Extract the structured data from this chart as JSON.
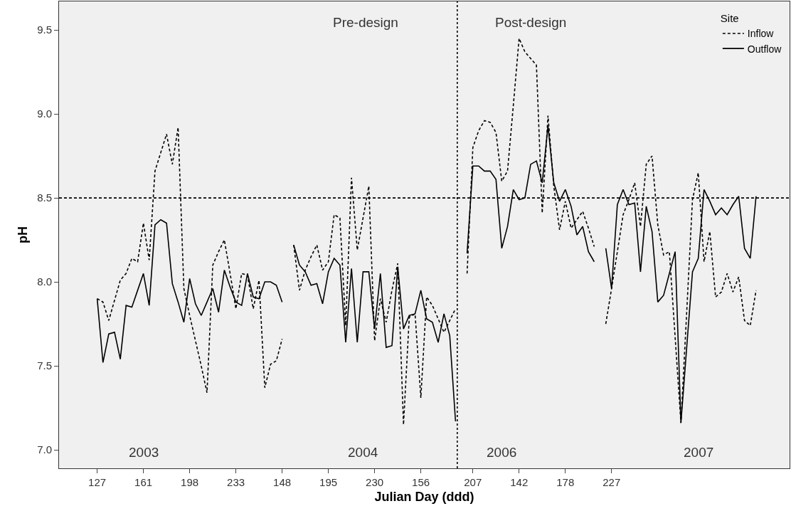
{
  "chart_data": {
    "type": "line",
    "xlabel": "Julian Day (ddd)",
    "ylabel": "pH",
    "legend_title": "Site",
    "legend": "top right",
    "grid": false,
    "marker": "none",
    "categories": [
      "127",
      null,
      null,
      null,
      null,
      null,
      null,
      null,
      "161",
      null,
      null,
      null,
      null,
      null,
      null,
      null,
      "198",
      null,
      null,
      null,
      null,
      null,
      null,
      null,
      "233",
      null,
      null,
      null,
      null,
      null,
      null,
      null,
      "148",
      null,
      null,
      null,
      null,
      null,
      null,
      null,
      "195",
      null,
      null,
      null,
      null,
      null,
      null,
      null,
      "230",
      null,
      null,
      null,
      null,
      null,
      null,
      null,
      "156",
      null,
      null,
      null,
      null,
      null,
      null,
      null,
      null,
      "207",
      null,
      null,
      null,
      null,
      null,
      null,
      null,
      "142",
      null,
      null,
      null,
      null,
      null,
      null,
      null,
      "178",
      null,
      null,
      null,
      null,
      null,
      null,
      null,
      "227",
      null,
      null,
      null,
      null,
      null,
      null,
      null,
      null,
      null,
      null,
      null,
      null,
      null,
      null,
      null,
      null,
      null,
      null,
      null,
      null,
      null,
      null,
      null,
      null,
      null
    ],
    "ylim": [
      6.89,
      9.67
    ],
    "yticks": [
      {
        "value": 7,
        "label": "7.0"
      },
      {
        "value": 7.5,
        "label": "7.5"
      },
      {
        "value": 8,
        "label": "8.0"
      },
      {
        "value": 8.5,
        "label": "8.5"
      },
      {
        "value": 9,
        "label": "9.0"
      },
      {
        "value": 9.5,
        "label": "9.5"
      }
    ],
    "ref_lines": [
      {
        "axis": "y",
        "value": 8.5,
        "line_style": "dashed",
        "color": "#000000"
      }
    ],
    "annotations": [
      "Pre-design",
      "Post-design",
      "2003",
      "2004",
      "2006",
      "2007"
    ],
    "series": [
      {
        "name": "Inflow",
        "color": "#000000",
        "line_style": "dashed",
        "values": [
          7.9,
          7.88,
          7.77,
          7.89,
          8.01,
          8.05,
          8.14,
          8.12,
          8.35,
          8.13,
          8.66,
          8.77,
          8.88,
          8.7,
          8.92,
          7.96,
          7.8,
          7.65,
          7.5,
          7.34,
          8.1,
          8.18,
          8.25,
          8.05,
          7.84,
          8.05,
          8.04,
          7.84,
          8.01,
          7.37,
          7.51,
          7.53,
          7.66,
          null,
          8.22,
          7.95,
          8.07,
          8.15,
          8.22,
          8.07,
          8.12,
          8.4,
          8.38,
          7.74,
          8.62,
          8.19,
          8.38,
          8.57,
          7.65,
          7.9,
          7.76,
          7.95,
          8.11,
          7.15,
          7.79,
          7.81,
          7.31,
          7.91,
          7.86,
          7.78,
          7.7,
          7.77,
          7.84,
          null,
          8.05,
          8.8,
          8.9,
          8.96,
          8.95,
          8.89,
          8.6,
          8.66,
          9.05,
          9.45,
          9.37,
          9.33,
          9.29,
          8.41,
          8.99,
          8.57,
          8.31,
          8.48,
          8.32,
          8.37,
          8.42,
          8.32,
          8.21,
          null,
          7.75,
          7.96,
          8.18,
          8.4,
          8.49,
          8.59,
          8.33,
          8.7,
          8.75,
          8.34,
          8.16,
          8.18,
          7.67,
          7.16,
          7.82,
          8.49,
          8.65,
          8.12,
          8.3,
          7.91,
          7.94,
          8.05,
          7.94,
          8.03,
          7.77,
          7.74,
          7.95
        ]
      },
      {
        "name": "Outflow",
        "color": "#000000",
        "line_style": "solid",
        "values": [
          7.9,
          7.52,
          7.69,
          7.7,
          7.54,
          7.86,
          7.85,
          7.95,
          8.05,
          7.86,
          8.34,
          8.37,
          8.35,
          7.99,
          7.88,
          7.76,
          8.02,
          7.87,
          7.8,
          7.88,
          7.96,
          7.82,
          8.07,
          7.97,
          7.88,
          7.86,
          8.05,
          7.91,
          7.9,
          8.0,
          8.0,
          7.98,
          7.88,
          null,
          8.22,
          8.1,
          8.06,
          7.98,
          7.99,
          7.87,
          8.06,
          8.14,
          8.1,
          7.64,
          8.08,
          7.64,
          8.06,
          8.06,
          7.72,
          8.05,
          7.61,
          7.62,
          8.09,
          7.72,
          7.8,
          7.81,
          7.95,
          7.78,
          7.76,
          7.64,
          7.81,
          7.68,
          7.17,
          null,
          8.17,
          8.69,
          8.69,
          8.66,
          8.66,
          8.61,
          8.2,
          8.33,
          8.55,
          8.49,
          8.5,
          8.7,
          8.72,
          8.59,
          8.93,
          8.59,
          8.48,
          8.55,
          8.45,
          8.28,
          8.33,
          8.18,
          8.12,
          null,
          8.2,
          7.96,
          8.46,
          8.55,
          8.46,
          8.47,
          8.06,
          8.45,
          8.3,
          7.88,
          7.92,
          8.05,
          8.18,
          7.16,
          7.61,
          8.06,
          8.14,
          8.55,
          8.48,
          8.4,
          8.44,
          8.4,
          8.46,
          8.51,
          8.2,
          8.14,
          8.51
        ]
      }
    ]
  }
}
